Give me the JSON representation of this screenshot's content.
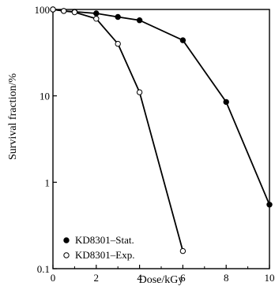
{
  "chart_data": {
    "type": "line",
    "title": "",
    "xlabel": "Dose/kGy",
    "ylabel": "Survival fraction/%",
    "xlim": [
      0,
      10
    ],
    "ylim": [
      0.1,
      100
    ],
    "y_scale": "log",
    "grid": false,
    "legend_position": "bottom-left",
    "x_ticks": [
      0,
      2,
      4,
      6,
      8,
      10
    ],
    "x_tick_labels": [
      "0",
      "2",
      "4",
      "6",
      "8",
      "10"
    ],
    "y_ticks": [
      0.1,
      1,
      10,
      100
    ],
    "y_tick_labels": [
      "0.1",
      "1",
      "10",
      "100"
    ],
    "series": [
      {
        "name": "KD8301–Stat.",
        "marker": "filled-circle",
        "color": "#000000",
        "x": [
          0,
          0.5,
          1,
          2,
          3,
          4,
          6,
          8,
          10
        ],
        "y": [
          100,
          96,
          94,
          90,
          82,
          75,
          44,
          8.5,
          0.55
        ]
      },
      {
        "name": "KD8301–Exp.",
        "marker": "open-circle",
        "color": "#000000",
        "x": [
          0,
          0.5,
          1,
          2,
          3,
          4,
          6
        ],
        "y": [
          100,
          96,
          93,
          78,
          40,
          11,
          0.16
        ]
      }
    ]
  }
}
